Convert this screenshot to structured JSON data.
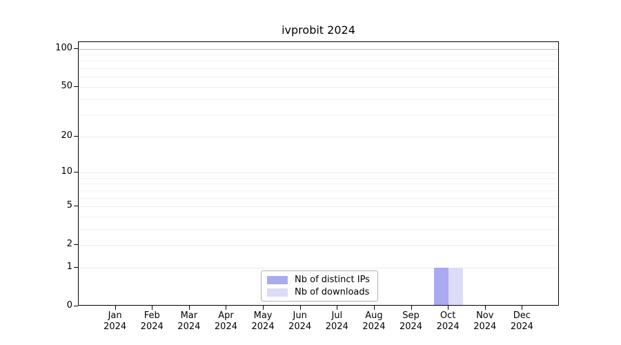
{
  "chart_data": {
    "type": "bar",
    "title": "ivprobit 2024",
    "categories": [
      {
        "month": "Jan",
        "year": "2024"
      },
      {
        "month": "Feb",
        "year": "2024"
      },
      {
        "month": "Mar",
        "year": "2024"
      },
      {
        "month": "Apr",
        "year": "2024"
      },
      {
        "month": "May",
        "year": "2024"
      },
      {
        "month": "Jun",
        "year": "2024"
      },
      {
        "month": "Jul",
        "year": "2024"
      },
      {
        "month": "Aug",
        "year": "2024"
      },
      {
        "month": "Sep",
        "year": "2024"
      },
      {
        "month": "Oct",
        "year": "2024"
      },
      {
        "month": "Nov",
        "year": "2024"
      },
      {
        "month": "Dec",
        "year": "2024"
      }
    ],
    "series": [
      {
        "name": "Nb of distinct IPs",
        "color": "#aaaaf0",
        "values": [
          0,
          0,
          0,
          0,
          0,
          0,
          0,
          0,
          0,
          1,
          0,
          0
        ]
      },
      {
        "name": "Nb of downloads",
        "color": "#dcdcf8",
        "values": [
          0,
          0,
          0,
          0,
          0,
          0,
          0,
          0,
          0,
          1,
          0,
          0
        ]
      }
    ],
    "y_axis": {
      "scale": "log1p",
      "ticks": [
        0,
        1,
        2,
        5,
        10,
        20,
        50,
        100
      ],
      "minor_ticks": [
        3,
        4,
        6,
        7,
        8,
        9,
        30,
        40,
        60,
        70,
        80,
        90
      ],
      "range_max": 110
    },
    "x_axis": {
      "label_lines": 2
    },
    "legend": {
      "position": "bottom-center"
    },
    "grid": "horizontal",
    "colors": {
      "grid": "#ececec",
      "grid_minor": "#f1f1f1",
      "grid_emphasis": "#c0c0c0",
      "axis": "#000000",
      "background": "#ffffff",
      "legend_border": "#b0b0b0"
    }
  }
}
